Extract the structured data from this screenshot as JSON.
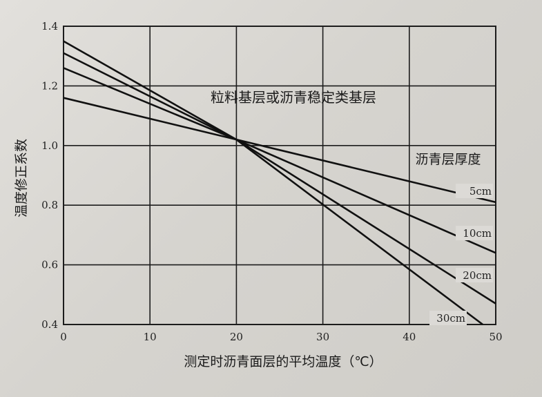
{
  "chart_data": {
    "type": "line",
    "title": "",
    "xlabel": "测定时沥青面层的平均温度（℃）",
    "ylabel": "温度修正系数",
    "xlim": [
      0,
      50
    ],
    "ylim": [
      0.4,
      1.4
    ],
    "x_ticks": [
      "0",
      "10",
      "20",
      "30",
      "40",
      "50"
    ],
    "y_ticks": [
      "0.4",
      "0.6",
      "0.8",
      "1.0",
      "1.2",
      "1.4"
    ],
    "grid": true,
    "annotations": [
      {
        "text": "粒料基层或沥青稳定类基层"
      },
      {
        "text": "沥青层厚度"
      }
    ],
    "series": [
      {
        "name": "5cm",
        "x": [
          0,
          20,
          50
        ],
        "y": [
          1.16,
          1.02,
          0.81
        ]
      },
      {
        "name": "10cm",
        "x": [
          0,
          20,
          50
        ],
        "y": [
          1.26,
          1.02,
          0.64
        ]
      },
      {
        "name": "20cm",
        "x": [
          0,
          20,
          50
        ],
        "y": [
          1.31,
          1.02,
          0.47
        ]
      },
      {
        "name": "30cm",
        "x": [
          0,
          20,
          48.5
        ],
        "y": [
          1.35,
          1.02,
          0.4
        ]
      }
    ]
  }
}
